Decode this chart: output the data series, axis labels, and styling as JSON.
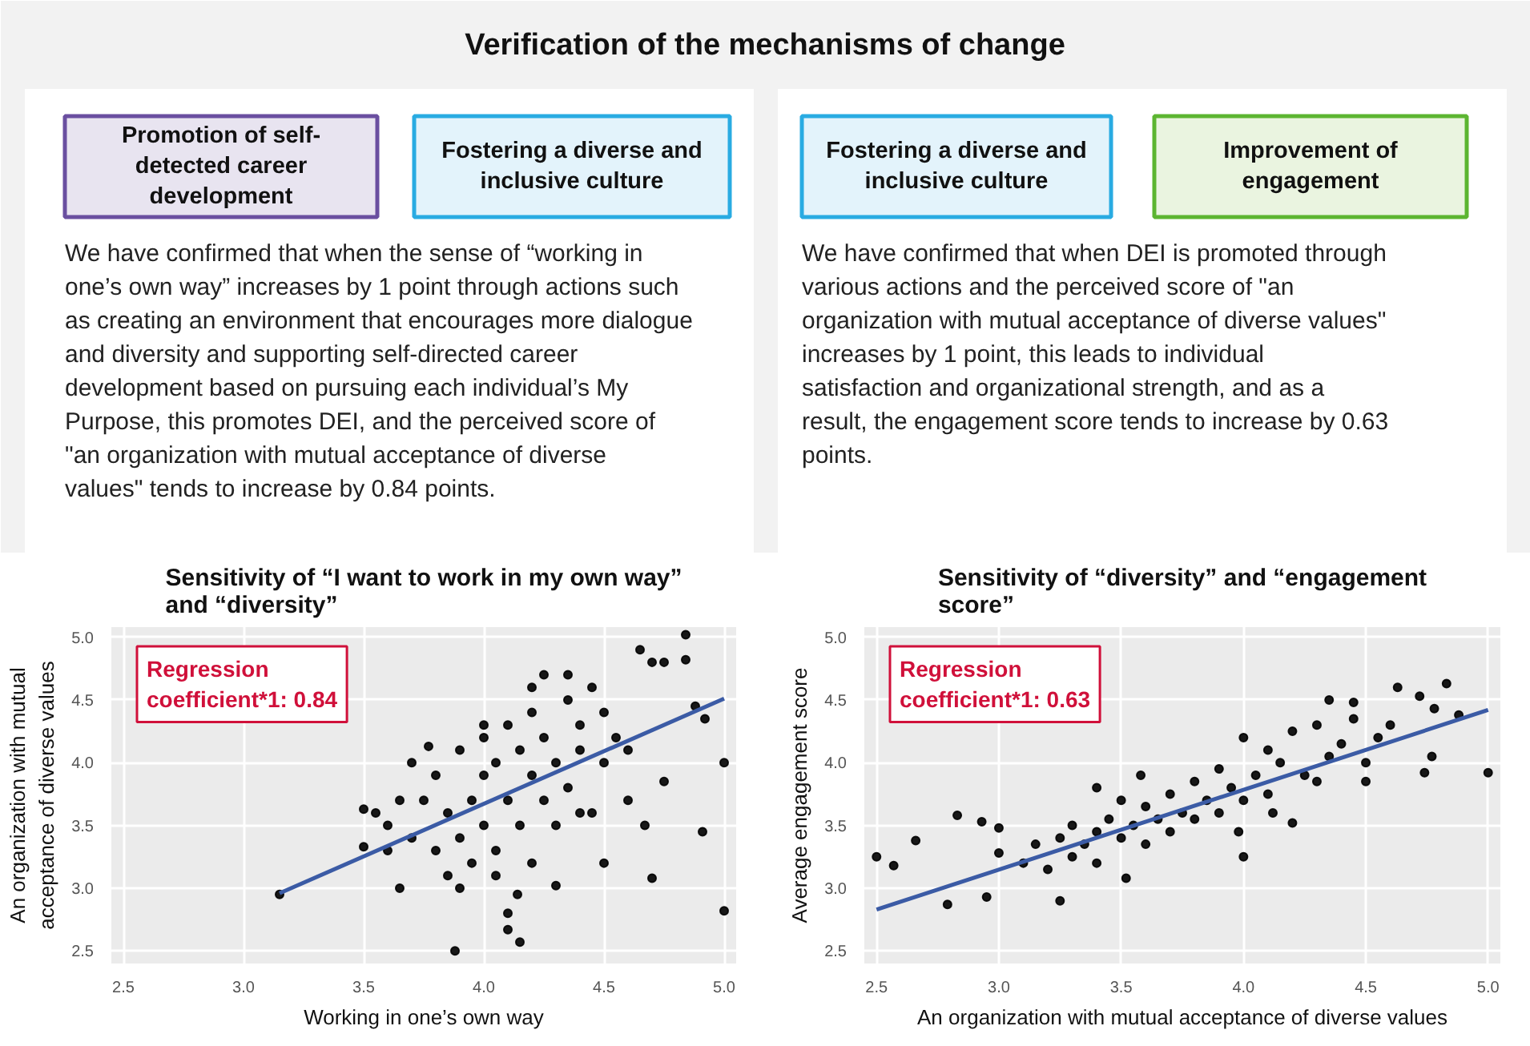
{
  "chart_data": [
    {
      "type": "other",
      "title": "Verification of the mechanisms of change",
      "annotations": [
        "Promotion of self-detected career development",
        "Fostering a diverse and inclusive culture",
        "We have confirmed that when the sense of “working in one’s own way” increases by 1 point through actions such as creating an environment that encourages more dialogue and diversity and supporting self-directed career development based on pursuing each individual’s My Purpose, this promotes DEI, and the perceived score of \"an organization with mutual acceptance of diverse values\" tends to increase by 0.84 points.",
        "Fostering a diverse and inclusive culture",
        "Improvement of engagement",
        "We have confirmed that when DEI is promoted through various actions and the perceived score of \"an organization with mutual acceptance of diverse values\" increases by 1 point, this leads to individual satisfaction and organizational strength, and as a result, the engagement score tends to increase by 0.63 points."
      ]
    },
    {
      "type": "scatter",
      "title": "Sensitivity of “I want to work in my own way” and “diversity”",
      "xlabel": "Working in one’s own way",
      "ylabel": "An organization with mutual acceptance of diverse values",
      "annotations": [
        "Regression coefficient*1: 0.84"
      ],
      "xlim": [
        2.45,
        5.05
      ],
      "ylim": [
        2.4,
        5.08
      ],
      "xticks": [
        {
          "value": 2.5,
          "label": "2.5"
        },
        {
          "value": 3,
          "label": "3.0"
        },
        {
          "value": 3.5,
          "label": "3.5"
        },
        {
          "value": 4,
          "label": "4.0"
        },
        {
          "value": 4.5,
          "label": "4.5"
        },
        {
          "value": 5,
          "label": "5.0"
        }
      ],
      "yticks": [
        {
          "value": 2.5,
          "label": "2.5"
        },
        {
          "value": 3,
          "label": "3.0"
        },
        {
          "value": 3.5,
          "label": "3.5"
        },
        {
          "value": 4,
          "label": "4.0"
        },
        {
          "value": 4.5,
          "label": "4.5"
        },
        {
          "value": 5,
          "label": "5.0"
        }
      ],
      "grid": true,
      "marker": "circle",
      "series": [
        {
          "color": "#000000",
          "x": [
            3.15,
            3.5,
            3.5,
            3.55,
            3.6,
            3.65,
            3.77,
            3.7,
            3.88,
            4.1,
            4.1,
            4.15,
            4.14,
            4.84,
            4.84,
            4.75,
            4.65,
            4.7,
            5.0,
            5.0,
            4.91,
            4.7,
            4.5,
            4.92,
            4.88,
            4.75,
            4.67,
            4.3,
            3.9,
            3.6,
            3.7,
            3.75,
            3.8,
            3.8,
            3.85,
            3.9,
            3.9,
            3.95,
            4.0,
            4.0,
            4.0,
            4.05,
            4.05,
            4.1,
            4.1,
            4.15,
            4.15,
            4.2,
            4.2,
            4.2,
            4.25,
            4.25,
            4.3,
            4.3,
            4.35,
            4.35,
            4.4,
            4.4,
            4.45,
            4.45,
            4.5,
            4.5,
            4.55,
            4.6,
            4.6,
            3.85,
            3.95,
            4.05,
            4.25,
            4.4,
            4.2,
            3.65,
            4.35,
            4.0
          ],
          "values": [
            2.95,
            3.63,
            3.33,
            3.6,
            3.3,
            3.0,
            4.13,
            4.0,
            2.5,
            2.8,
            2.67,
            2.57,
            2.95,
            5.02,
            4.82,
            4.8,
            4.9,
            4.8,
            4.0,
            2.82,
            3.45,
            3.08,
            3.2,
            4.35,
            4.45,
            3.85,
            3.5,
            3.02,
            3.0,
            3.5,
            3.4,
            3.7,
            3.3,
            3.9,
            3.6,
            3.4,
            4.1,
            3.7,
            3.5,
            3.9,
            4.2,
            3.3,
            4.0,
            3.7,
            4.3,
            3.5,
            4.1,
            3.9,
            4.4,
            3.2,
            3.7,
            4.2,
            3.5,
            4.0,
            3.8,
            4.5,
            4.1,
            4.3,
            3.6,
            4.6,
            4.0,
            4.4,
            4.2,
            4.1,
            3.7,
            3.1,
            3.2,
            3.1,
            4.7,
            3.6,
            4.6,
            3.7,
            4.7,
            4.3
          ]
        },
        {
          "type": "line",
          "color": "#3b5ba5",
          "marker": "none",
          "x": [
            3.15,
            5.0
          ],
          "values": [
            2.96,
            4.51
          ]
        }
      ]
    },
    {
      "type": "scatter",
      "title": "Sensitivity of “diversity” and “engagement score”",
      "xlabel": "An organization with mutual acceptance of diverse values",
      "ylabel": "Average engagement score",
      "annotations": [
        "Regression coefficient*1: 0.63"
      ],
      "xlim": [
        2.45,
        5.05
      ],
      "ylim": [
        2.4,
        5.08
      ],
      "xticks": [
        {
          "value": 2.5,
          "label": "2.5"
        },
        {
          "value": 3,
          "label": "3.0"
        },
        {
          "value": 3.5,
          "label": "3.5"
        },
        {
          "value": 4,
          "label": "4.0"
        },
        {
          "value": 4.5,
          "label": "4.5"
        },
        {
          "value": 5,
          "label": "5.0"
        }
      ],
      "yticks": [
        {
          "value": 2.5,
          "label": "2.5"
        },
        {
          "value": 3,
          "label": "3.0"
        },
        {
          "value": 3.5,
          "label": "3.5"
        },
        {
          "value": 4,
          "label": "4.0"
        },
        {
          "value": 4.5,
          "label": "4.5"
        },
        {
          "value": 5,
          "label": "5.0"
        }
      ],
      "grid": true,
      "marker": "circle",
      "series": [
        {
          "color": "#000000",
          "x": [
            2.5,
            2.57,
            2.66,
            2.79,
            2.83,
            2.93,
            2.95,
            3.0,
            3.0,
            3.25,
            3.52,
            4.0,
            4.35,
            4.63,
            4.83,
            4.72,
            4.78,
            4.77,
            5.0,
            4.74,
            4.88,
            4.45,
            4.2,
            3.1,
            3.15,
            3.2,
            3.25,
            3.3,
            3.3,
            3.35,
            3.4,
            3.4,
            3.45,
            3.5,
            3.5,
            3.55,
            3.6,
            3.6,
            3.65,
            3.7,
            3.7,
            3.75,
            3.8,
            3.8,
            3.85,
            3.9,
            3.9,
            3.95,
            4.0,
            4.0,
            4.05,
            4.1,
            4.1,
            4.15,
            4.2,
            4.25,
            4.3,
            4.3,
            4.35,
            4.4,
            4.45,
            4.5,
            4.55,
            4.6,
            3.4,
            3.58,
            3.98,
            4.12,
            4.5
          ],
          "values": [
            3.25,
            3.18,
            3.38,
            2.87,
            3.58,
            3.53,
            2.93,
            3.48,
            3.28,
            2.9,
            3.08,
            3.25,
            4.5,
            4.6,
            4.63,
            4.53,
            4.43,
            4.05,
            3.92,
            3.92,
            4.38,
            4.48,
            3.52,
            3.2,
            3.35,
            3.15,
            3.4,
            3.25,
            3.5,
            3.35,
            3.45,
            3.2,
            3.55,
            3.4,
            3.7,
            3.5,
            3.35,
            3.65,
            3.55,
            3.75,
            3.45,
            3.6,
            3.85,
            3.55,
            3.7,
            3.95,
            3.6,
            3.8,
            4.2,
            3.7,
            3.9,
            4.1,
            3.75,
            4.0,
            4.25,
            3.9,
            4.3,
            3.85,
            4.05,
            4.15,
            4.35,
            4.0,
            4.2,
            4.3,
            3.8,
            3.9,
            3.45,
            3.6,
            3.85
          ]
        },
        {
          "type": "line",
          "color": "#3b5ba5",
          "marker": "none",
          "x": [
            2.5,
            5.0
          ],
          "values": [
            2.83,
            4.42
          ]
        }
      ]
    }
  ]
}
